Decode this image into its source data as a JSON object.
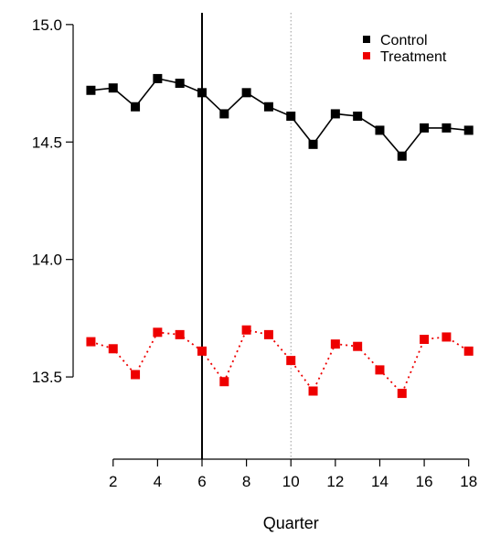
{
  "chart_data": {
    "type": "line",
    "xlabel": "Quarter",
    "ylabel": "",
    "xlim": [
      0.2,
      18.3
    ],
    "ylim": [
      13.15,
      15.05
    ],
    "x_ticks": [
      2,
      4,
      6,
      8,
      10,
      12,
      14,
      16,
      18
    ],
    "y_ticks": [
      13.5,
      14.0,
      14.5,
      15.0
    ],
    "y_tick_labels": [
      "13.5",
      "14.0",
      "14.5",
      "15.0"
    ],
    "x": [
      1,
      2,
      3,
      4,
      5,
      6,
      7,
      8,
      9,
      10,
      11,
      12,
      13,
      14,
      15,
      16,
      17,
      18
    ],
    "series": [
      {
        "name": "Control",
        "color": "#000000",
        "line_style": "solid",
        "marker": "square",
        "values": [
          14.72,
          14.73,
          14.65,
          14.77,
          14.75,
          14.71,
          14.62,
          14.71,
          14.65,
          14.61,
          14.49,
          14.62,
          14.61,
          14.55,
          14.44,
          14.56,
          14.56,
          14.55
        ]
      },
      {
        "name": "Treatment",
        "color": "#ee0000",
        "line_style": "dotted",
        "marker": "square",
        "values": [
          13.65,
          13.62,
          13.51,
          13.69,
          13.68,
          13.61,
          13.48,
          13.7,
          13.68,
          13.57,
          13.44,
          13.64,
          13.63,
          13.53,
          13.43,
          13.66,
          13.67,
          13.61
        ]
      }
    ],
    "reference_lines": [
      {
        "x": 6,
        "style": "solid",
        "color": "#000000"
      },
      {
        "x": 10,
        "style": "dotted",
        "color": "#999999"
      }
    ],
    "legend_position": "top-right",
    "grid": false
  }
}
